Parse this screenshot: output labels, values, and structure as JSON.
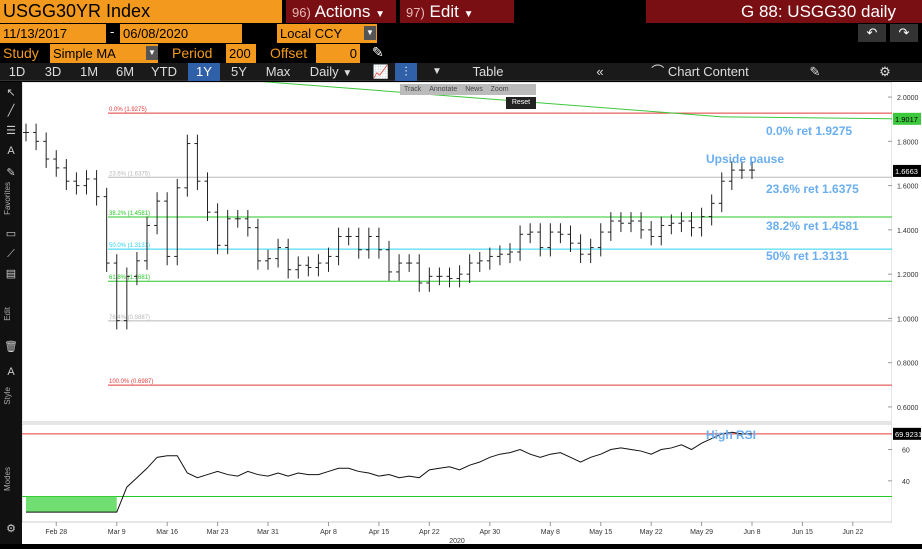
{
  "header": {
    "ticker": "USGG30YR Index",
    "actions_num": "96)",
    "actions_label": "Actions",
    "edit_num": "97)",
    "edit_label": "Edit",
    "window_title": "G 88: USGG30 daily"
  },
  "range": {
    "start": "11/13/2017",
    "end": "06/08/2020",
    "currency": "Local CCY"
  },
  "study": {
    "label": "Study",
    "type": "Simple MA",
    "period_label": "Period",
    "period": "200",
    "offset_label": "Offset",
    "offset": "0"
  },
  "toolbar": {
    "periods": [
      "1D",
      "3D",
      "1M",
      "6M",
      "YTD",
      "1Y",
      "5Y",
      "Max"
    ],
    "selected": "1Y",
    "frequency": "Daily",
    "table_label": "Table",
    "chart_content_label": "Chart Content"
  },
  "chart_tools": {
    "track": "Track",
    "annotate": "Annotate",
    "news": "News",
    "zoom": "Zoom",
    "reset": "Reset"
  },
  "side_labels": {
    "favorites": "Favorites",
    "edit": "Edit",
    "style": "Style",
    "modes": "Modes"
  },
  "annotations": {
    "upside_pause": "Upside pause",
    "high_rsi": "High RSI",
    "fib_0": "0.0% ret 1.9275",
    "fib_236": "23.6% ret 1.6375",
    "fib_382": "38.2% ret 1.4581",
    "fib_50": "50% ret 1.3131"
  },
  "fib_small_labels": [
    "0.0% (1.9275)",
    "23.6% (1.6375)",
    "38.2% (1.4581)",
    "50.0% (1.3131)",
    "61.8% (1.1681)",
    "76.4% (0.9887)",
    "100.0% (0.6987)"
  ],
  "price_badges": {
    "ma": "1.9017",
    "last": "1.6663",
    "rsi": "69.9231"
  },
  "colors": {
    "orange": "#f39a1e",
    "brand_red": "#7a0f13",
    "fib_red": "#e23a3a",
    "fib_green": "#26c826",
    "fib_cyan": "#2ad4ef",
    "annotation_blue": "#6aaef0",
    "ma_green": "#3cc83c"
  },
  "chart_data": {
    "type": "line",
    "ohlc_price": {
      "dates": [
        "Feb 25",
        "Feb 26",
        "Feb 27",
        "Feb 28",
        "Mar 2",
        "Mar 3",
        "Mar 4",
        "Mar 5",
        "Mar 6",
        "Mar 9",
        "Mar 10",
        "Mar 11",
        "Mar 12",
        "Mar 13",
        "Mar 16",
        "Mar 17",
        "Mar 18",
        "Mar 19",
        "Mar 20",
        "Mar 23",
        "Mar 24",
        "Mar 25",
        "Mar 26",
        "Mar 27",
        "Mar 30",
        "Mar 31",
        "Apr 1",
        "Apr 2",
        "Apr 3",
        "Apr 6",
        "Apr 7",
        "Apr 8",
        "Apr 9",
        "Apr 13",
        "Apr 14",
        "Apr 15",
        "Apr 16",
        "Apr 17",
        "Apr 20",
        "Apr 21",
        "Apr 22",
        "Apr 23",
        "Apr 24",
        "Apr 27",
        "Apr 28",
        "Apr 29",
        "Apr 30",
        "May 1",
        "May 4",
        "May 5",
        "May 6",
        "May 7",
        "May 8",
        "May 11",
        "May 12",
        "May 13",
        "May 14",
        "May 15",
        "May 18",
        "May 19",
        "May 20",
        "May 21",
        "May 22",
        "May 26",
        "May 27",
        "May 28",
        "May 29",
        "Jun 1",
        "Jun 2",
        "Jun 3",
        "Jun 4",
        "Jun 5",
        "Jun 8"
      ],
      "close": [
        1.84,
        1.8,
        1.72,
        1.68,
        1.62,
        1.6,
        1.63,
        1.55,
        1.25,
        0.99,
        1.19,
        1.26,
        1.42,
        1.53,
        1.28,
        1.59,
        1.79,
        1.62,
        1.48,
        1.33,
        1.45,
        1.45,
        1.41,
        1.26,
        1.27,
        1.32,
        1.22,
        1.24,
        1.23,
        1.25,
        1.28,
        1.37,
        1.37,
        1.31,
        1.37,
        1.31,
        1.21,
        1.25,
        1.25,
        1.16,
        1.19,
        1.19,
        1.18,
        1.2,
        1.25,
        1.26,
        1.28,
        1.29,
        1.3,
        1.38,
        1.39,
        1.32,
        1.39,
        1.38,
        1.34,
        1.29,
        1.32,
        1.39,
        1.44,
        1.43,
        1.44,
        1.4,
        1.37,
        1.42,
        1.43,
        1.44,
        1.41,
        1.46,
        1.52,
        1.62,
        1.67,
        1.67,
        1.67
      ]
    },
    "moving_average_200": {
      "start": 2.32,
      "end": 1.9017
    },
    "fibonacci": {
      "levels": [
        0.0,
        23.6,
        38.2,
        50.0,
        61.8,
        76.4,
        100.0
      ],
      "values": [
        1.9275,
        1.6375,
        1.4581,
        1.3131,
        1.1681,
        0.9887,
        0.6987
      ]
    },
    "rsi_approx": [
      20,
      20,
      20,
      20,
      20,
      20,
      20,
      20,
      20,
      20,
      36,
      42,
      48,
      55,
      56,
      56,
      45,
      42,
      44,
      46,
      44,
      43,
      46,
      44,
      43,
      45,
      43,
      45,
      44,
      44,
      46,
      48,
      48,
      46,
      45,
      43,
      44,
      42,
      43,
      42,
      47,
      48,
      49,
      47,
      50,
      52,
      55,
      57,
      58,
      60,
      57,
      55,
      57,
      58,
      55,
      52,
      55,
      57,
      60,
      61,
      60,
      59,
      57,
      60,
      61,
      63,
      60,
      64,
      67,
      70,
      71,
      70,
      70
    ],
    "x_axis_ticks": [
      "Feb 28",
      "Mar 9",
      "Mar 16",
      "Mar 23",
      "Mar 31",
      "Apr 8",
      "Apr 15",
      "Apr 22",
      "Apr 30",
      "May 8",
      "May 15",
      "May 22",
      "May 29",
      "Jun 8",
      "Jun 15",
      "Jun 22"
    ],
    "x_axis_year": "2020",
    "y_axis_ticks": [
      "2.0000",
      "1.8000",
      "1.6000",
      "1.4000",
      "1.2000",
      "1.0000",
      "0.8000",
      "0.6000"
    ],
    "rsi_ticks": [
      "60",
      "40"
    ],
    "ylim": [
      0.55,
      2.05
    ]
  }
}
